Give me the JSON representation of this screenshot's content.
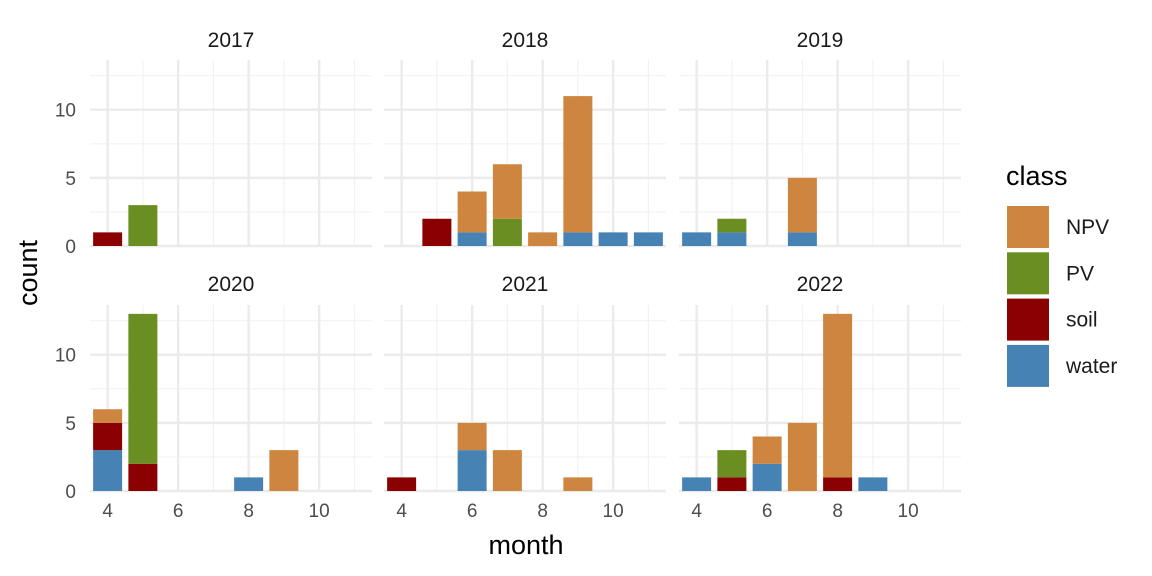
{
  "chart_data": {
    "type": "bar",
    "stacked": true,
    "xlabel": "month",
    "ylabel": "count",
    "xlim": [
      3.5,
      11.5
    ],
    "ylim": [
      0,
      13.65
    ],
    "x_ticks": [
      4,
      6,
      8,
      10
    ],
    "y_ticks": [
      0,
      5,
      10
    ],
    "grid": "on",
    "legend": {
      "title": "class",
      "position": "right",
      "entries": [
        {
          "name": "NPV",
          "color": "#CD853F"
        },
        {
          "name": "PV",
          "color": "#6B8E23"
        },
        {
          "name": "soil",
          "color": "#8B0000"
        },
        {
          "name": "water",
          "color": "#4682B4"
        }
      ]
    },
    "stack_order_bottom_to_top": [
      "water",
      "soil",
      "PV",
      "NPV"
    ],
    "panels": [
      {
        "title": "2017",
        "bars": [
          {
            "month": 4,
            "water": 0,
            "soil": 1,
            "PV": 0,
            "NPV": 0
          },
          {
            "month": 5,
            "water": 0,
            "soil": 0,
            "PV": 3,
            "NPV": 0
          }
        ]
      },
      {
        "title": "2018",
        "bars": [
          {
            "month": 5,
            "water": 0,
            "soil": 2,
            "PV": 0,
            "NPV": 0
          },
          {
            "month": 6,
            "water": 1,
            "soil": 0,
            "PV": 0,
            "NPV": 3
          },
          {
            "month": 7,
            "water": 0,
            "soil": 0,
            "PV": 2,
            "NPV": 4
          },
          {
            "month": 8,
            "water": 0,
            "soil": 0,
            "PV": 0,
            "NPV": 1
          },
          {
            "month": 9,
            "water": 1,
            "soil": 0,
            "PV": 0,
            "NPV": 10
          },
          {
            "month": 10,
            "water": 1,
            "soil": 0,
            "PV": 0,
            "NPV": 0
          },
          {
            "month": 11,
            "water": 1,
            "soil": 0,
            "PV": 0,
            "NPV": 0
          }
        ]
      },
      {
        "title": "2019",
        "bars": [
          {
            "month": 4,
            "water": 1,
            "soil": 0,
            "PV": 0,
            "NPV": 0
          },
          {
            "month": 5,
            "water": 1,
            "soil": 0,
            "PV": 1,
            "NPV": 0
          },
          {
            "month": 7,
            "water": 1,
            "soil": 0,
            "PV": 0,
            "NPV": 4
          }
        ]
      },
      {
        "title": "2020",
        "bars": [
          {
            "month": 4,
            "water": 3,
            "soil": 2,
            "PV": 0,
            "NPV": 1
          },
          {
            "month": 5,
            "water": 0,
            "soil": 2,
            "PV": 11,
            "NPV": 0
          },
          {
            "month": 8,
            "water": 1,
            "soil": 0,
            "PV": 0,
            "NPV": 0
          },
          {
            "month": 9,
            "water": 0,
            "soil": 0,
            "PV": 0,
            "NPV": 3
          }
        ]
      },
      {
        "title": "2021",
        "bars": [
          {
            "month": 4,
            "water": 0,
            "soil": 1,
            "PV": 0,
            "NPV": 0
          },
          {
            "month": 6,
            "water": 3,
            "soil": 0,
            "PV": 0,
            "NPV": 2
          },
          {
            "month": 7,
            "water": 0,
            "soil": 0,
            "PV": 0,
            "NPV": 3
          },
          {
            "month": 9,
            "water": 0,
            "soil": 0,
            "PV": 0,
            "NPV": 1
          }
        ]
      },
      {
        "title": "2022",
        "bars": [
          {
            "month": 4,
            "water": 1,
            "soil": 0,
            "PV": 0,
            "NPV": 0
          },
          {
            "month": 5,
            "water": 0,
            "soil": 1,
            "PV": 2,
            "NPV": 0
          },
          {
            "month": 6,
            "water": 2,
            "soil": 0,
            "PV": 0,
            "NPV": 2
          },
          {
            "month": 7,
            "water": 0,
            "soil": 0,
            "PV": 0,
            "NPV": 5
          },
          {
            "month": 8,
            "water": 0,
            "soil": 1,
            "PV": 0,
            "NPV": 12
          },
          {
            "month": 9,
            "water": 1,
            "soil": 0,
            "PV": 0,
            "NPV": 0
          }
        ]
      }
    ]
  }
}
